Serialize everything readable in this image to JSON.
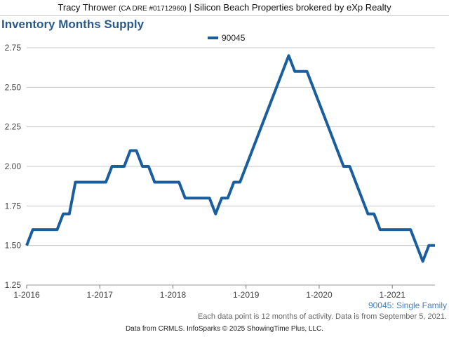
{
  "header": {
    "agent_name": "Tracy Thrower",
    "agent_license": "(CA DRE #01712960)",
    "separator": "|",
    "brokerage": "Silicon Beach Properties brokered by eXp Realty"
  },
  "colors": {
    "line": "#1b5e9e",
    "title": "#2a5b8c",
    "grid": "#c8c8c8"
  },
  "chart_data": {
    "type": "line",
    "title": "Inventory Months Supply",
    "xlabel": "",
    "ylabel": "",
    "ylim": [
      1.25,
      2.75
    ],
    "yticks": [
      "1.25",
      "1.50",
      "1.75",
      "2.00",
      "2.25",
      "2.50",
      "2.75"
    ],
    "xticks": [
      "1-2016",
      "1-2017",
      "1-2018",
      "1-2019",
      "1-2020",
      "1-2021"
    ],
    "x_range": [
      "2016-01",
      "2021-08"
    ],
    "grid": true,
    "legend": "top-center",
    "series": [
      {
        "name": "90045",
        "color": "#1b5e9e",
        "x": [
          "2016-01",
          "2016-02",
          "2016-03",
          "2016-04",
          "2016-05",
          "2016-06",
          "2016-07",
          "2016-08",
          "2016-09",
          "2016-10",
          "2016-11",
          "2016-12",
          "2017-01",
          "2017-02",
          "2017-03",
          "2017-04",
          "2017-05",
          "2017-06",
          "2017-07",
          "2017-08",
          "2017-09",
          "2017-10",
          "2017-11",
          "2017-12",
          "2018-01",
          "2018-02",
          "2018-03",
          "2018-04",
          "2018-05",
          "2018-06",
          "2018-07",
          "2018-08",
          "2018-09",
          "2018-10",
          "2018-11",
          "2018-12",
          "2019-01",
          "2019-02",
          "2019-03",
          "2019-04",
          "2019-05",
          "2019-06",
          "2019-07",
          "2019-08",
          "2019-09",
          "2019-10",
          "2019-11",
          "2019-12",
          "2020-01",
          "2020-02",
          "2020-03",
          "2020-04",
          "2020-05",
          "2020-06",
          "2020-07",
          "2020-08",
          "2020-09",
          "2020-10",
          "2020-11",
          "2020-12",
          "2021-01",
          "2021-02",
          "2021-03",
          "2021-04",
          "2021-05",
          "2021-06",
          "2021-07",
          "2021-08"
        ],
        "values": [
          1.5,
          1.6,
          1.6,
          1.6,
          1.6,
          1.6,
          1.7,
          1.7,
          1.9,
          1.9,
          1.9,
          1.9,
          1.9,
          1.9,
          2.0,
          2.0,
          2.0,
          2.1,
          2.1,
          2.0,
          2.0,
          1.9,
          1.9,
          1.9,
          1.9,
          1.9,
          1.8,
          1.8,
          1.8,
          1.8,
          1.8,
          1.7,
          1.8,
          1.8,
          1.9,
          1.9,
          2.0,
          2.1,
          2.2,
          2.3,
          2.4,
          2.5,
          2.6,
          2.7,
          2.6,
          2.6,
          2.6,
          2.5,
          2.4,
          2.3,
          2.2,
          2.1,
          2.0,
          2.0,
          1.9,
          1.8,
          1.7,
          1.7,
          1.6,
          1.6,
          1.6,
          1.6,
          1.6,
          1.6,
          1.5,
          1.4,
          1.5,
          1.5
        ]
      }
    ],
    "series_label": "90045: Single Family",
    "footnote": "Each data point is 12 months of activity. Data is from September 5, 2021."
  },
  "footer": {
    "credit": "Data from CRMLS. InfoSparks © 2025 ShowingTime Plus, LLC."
  }
}
